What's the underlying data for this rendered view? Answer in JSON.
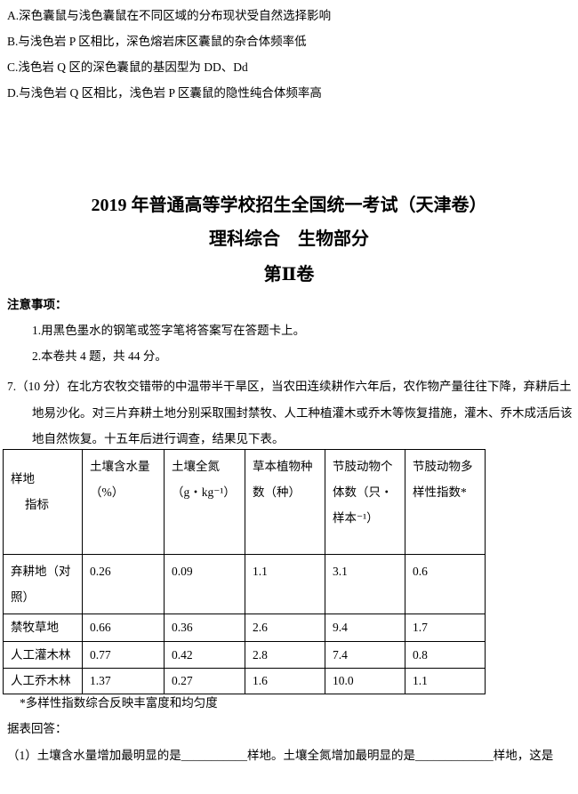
{
  "options": [
    "A.深色囊鼠与浅色囊鼠在不同区域的分布现状受自然选择影响",
    "B.与浅色岩 P 区相比，深色熔岩床区囊鼠的杂合体频率低",
    "C.浅色岩 Q 区的深色囊鼠的基因型为 DD、Dd",
    "D.与浅色岩 Q 区相比，浅色岩 P 区囊鼠的隐性纯合体频率高"
  ],
  "header": {
    "title": "2019 年普通高等学校招生全国统一考试（天津卷）",
    "subtitle": "理科综合　生物部分",
    "volume": "第Ⅱ卷"
  },
  "notice": {
    "heading": "注意事项：",
    "items": [
      "1.用黑色墨水的钢笔或签字笔将答案写在答题卡上。",
      "2.本卷共 4 题，共 44 分。"
    ]
  },
  "question": {
    "stem": "7.（10 分）在北方农牧交错带的中温带半干旱区，当农田连续耕作六年后，农作物产量往往下降，弃耕后土地易沙化。对三片弃耕土地分别采取围封禁牧、人工种植灌木或乔木等恢复措施，灌木、乔木成活后该地自然恢复。十五年后进行调查，结果见下表。",
    "table": {
      "corner": [
        "样地",
        "指标"
      ],
      "columns": [
        "土壤含水量（%）",
        "土壤全氮（g・kg⁻¹）",
        "草本植物种数（种）",
        "节肢动物个体数（只・样本⁻¹）",
        "节肢动物多样性指数*"
      ],
      "rows": [
        [
          "弃耕地（对照）",
          "0.26",
          "0.09",
          "1.1",
          "3.1",
          "0.6"
        ],
        [
          "禁牧草地",
          "0.66",
          "0.36",
          "2.6",
          "9.4",
          "1.7"
        ],
        [
          "人工灌木林",
          "0.77",
          "0.42",
          "2.8",
          "7.4",
          "0.8"
        ],
        [
          "人工乔木林",
          "1.37",
          "0.27",
          "1.6",
          "10.0",
          "1.1"
        ]
      ]
    },
    "note": "*多样性指数综合反映丰富度和均匀度",
    "prompt": "据表回答：",
    "sub1": "（1）土壤含水量增加最明显的是___________样地。土壤全氮增加最明显的是_____________样地，这是"
  }
}
